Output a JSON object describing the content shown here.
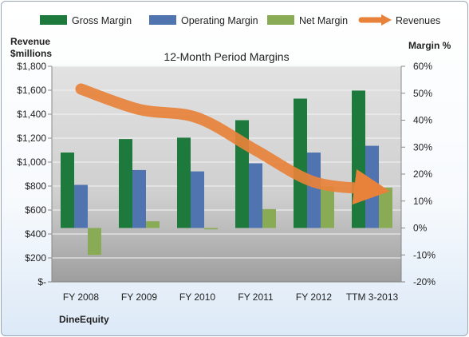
{
  "chart_data": {
    "type": "bar",
    "title": "12-Month Period Margins",
    "company": "DineEquity",
    "left_axis_label_line1": "Revenue",
    "left_axis_label_line2": "$millions",
    "right_axis_label": "Margin %",
    "categories": [
      "FY 2008",
      "FY 2009",
      "FY 2010",
      "FY 2011",
      "FY 2012",
      "TTM 3-2013"
    ],
    "left_axis": {
      "min": 0,
      "max": 1800,
      "ticks": [
        "$-",
        "$200",
        "$400",
        "$600",
        "$800",
        "$1,000",
        "$1,200",
        "$1,400",
        "$1,600",
        "$1,800"
      ]
    },
    "right_axis": {
      "min": -20,
      "max": 60,
      "ticks": [
        "-20%",
        "-10%",
        "0%",
        "10%",
        "20%",
        "30%",
        "40%",
        "50%",
        "60%"
      ]
    },
    "series": [
      {
        "name": "Gross Margin",
        "axis": "right",
        "color": "#1e7a3c",
        "values": [
          28,
          33,
          33.5,
          40,
          48,
          51
        ]
      },
      {
        "name": "Operating Margin",
        "axis": "right",
        "color": "#4f74b0",
        "values": [
          16,
          21.5,
          21,
          24,
          28,
          30.5
        ]
      },
      {
        "name": "Net Margin",
        "axis": "right",
        "color": "#8aab56",
        "values": [
          -10,
          2.5,
          -0.5,
          7,
          15.5,
          15
        ]
      },
      {
        "name": "Revenues",
        "axis": "left",
        "color": "#e8823a",
        "type": "line",
        "values": [
          1610,
          1440,
          1370,
          1100,
          835,
          775
        ]
      }
    ],
    "legend_position": "top",
    "grid": true
  }
}
